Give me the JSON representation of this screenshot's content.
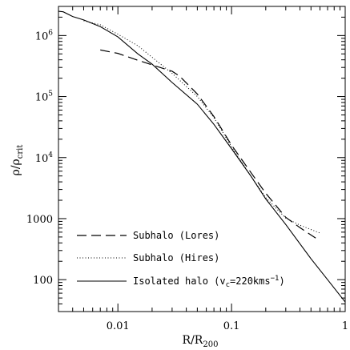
{
  "chart_data": {
    "type": "line",
    "xscale": "log",
    "yscale": "log",
    "xlim": [
      0.003,
      1
    ],
    "ylim": [
      30,
      3000000
    ],
    "xlabel": "R/R",
    "xlabel_sub": "200",
    "ylabel": "ρ/ρ",
    "ylabel_sub": "crit",
    "x_ticks": [
      {
        "value": 0.01,
        "label": "0.01"
      },
      {
        "value": 0.1,
        "label": "0.1"
      },
      {
        "value": 1,
        "label": "1"
      }
    ],
    "y_ticks": [
      {
        "value": 100,
        "label": "100"
      },
      {
        "value": 1000,
        "label": "1000"
      },
      {
        "value": 10000,
        "label": "10",
        "exp": "4"
      },
      {
        "value": 100000,
        "label": "10",
        "exp": "5"
      },
      {
        "value": 1000000,
        "label": "10",
        "exp": "6"
      }
    ],
    "legend_position": "bottom-left",
    "series": [
      {
        "name": "Subhalo (Lores)",
        "style": "dashed",
        "x": [
          0.007,
          0.01,
          0.014,
          0.02,
          0.03,
          0.035,
          0.05,
          0.07,
          0.1,
          0.15,
          0.2,
          0.3,
          0.4,
          0.55
        ],
        "y": [
          580000,
          510000,
          410000,
          330000,
          260000,
          215000,
          110000,
          47000,
          16000,
          5500,
          2600,
          1050,
          710,
          480
        ]
      },
      {
        "name": "Subhalo (Hires)",
        "style": "dotted",
        "x": [
          0.005,
          0.007,
          0.01,
          0.015,
          0.02,
          0.03,
          0.05,
          0.07,
          0.1,
          0.15,
          0.2,
          0.3,
          0.4,
          0.6
        ],
        "y": [
          1750000,
          1500000,
          1050000,
          680000,
          440000,
          240000,
          100000,
          45000,
          15000,
          4800,
          2200,
          1020,
          780,
          580
        ]
      },
      {
        "name": "Isolated halo (v",
        "name_sub": "c",
        "name_rest": "=220kms",
        "name_sup": "−1",
        "name_end": ")",
        "style": "solid",
        "x": [
          0.003,
          0.0033,
          0.004,
          0.005,
          0.007,
          0.01,
          0.015,
          0.02,
          0.03,
          0.05,
          0.07,
          0.1,
          0.15,
          0.2,
          0.3,
          0.5,
          0.7,
          1
        ],
        "y": [
          2500000,
          2450000,
          2050000,
          1800000,
          1400000,
          950000,
          500000,
          340000,
          170000,
          75000,
          35000,
          14000,
          4800,
          2100,
          800,
          220,
          100,
          43
        ]
      }
    ]
  }
}
